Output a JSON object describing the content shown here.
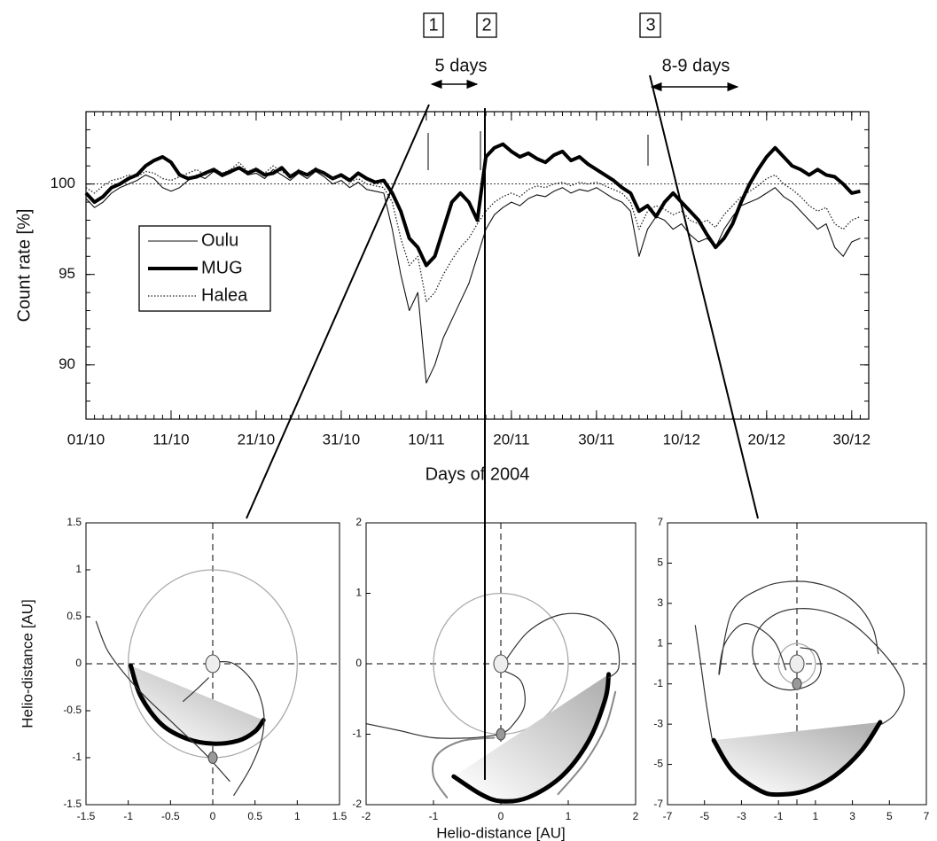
{
  "chart_data": [
    {
      "type": "line",
      "xlabel": "Days of 2004",
      "ylabel": "Count rate [%]",
      "x": [
        275,
        276,
        277,
        278,
        279,
        280,
        281,
        282,
        283,
        284,
        285,
        286,
        287,
        288,
        289,
        290,
        291,
        292,
        293,
        294,
        295,
        296,
        297,
        298,
        299,
        300,
        301,
        302,
        303,
        304,
        305,
        306,
        307,
        308,
        309,
        310,
        311,
        312,
        313,
        314,
        315,
        316,
        317,
        318,
        319,
        320,
        321,
        322,
        323,
        324,
        325,
        326,
        327,
        328,
        329,
        330,
        331,
        332,
        333,
        334,
        335,
        336,
        337,
        338,
        339,
        340,
        341,
        342,
        343,
        344,
        345,
        346,
        347,
        348,
        349,
        350,
        351,
        352,
        353,
        354,
        355,
        356,
        357,
        358,
        359,
        360,
        361,
        362,
        363,
        364,
        365,
        366
      ],
      "xlim": [
        275,
        367
      ],
      "xticks": [
        {
          "value": 275,
          "label": "01/10"
        },
        {
          "value": 285,
          "label": "11/10"
        },
        {
          "value": 295,
          "label": "21/10"
        },
        {
          "value": 305,
          "label": "31/10"
        },
        {
          "value": 315,
          "label": "10/11"
        },
        {
          "value": 325,
          "label": "20/11"
        },
        {
          "value": 335,
          "label": "30/11"
        },
        {
          "value": 345,
          "label": "10/12"
        },
        {
          "value": 355,
          "label": "20/12"
        },
        {
          "value": 365,
          "label": "30/12"
        }
      ],
      "ylim": [
        87,
        104
      ],
      "yticks": [
        90,
        95,
        100
      ],
      "reference_y": 100,
      "legend": "left",
      "series": [
        {
          "name": "Oulu",
          "color": "#111111",
          "width": 1.1,
          "dash": "solid",
          "values": [
            99.2,
            98.7,
            99.0,
            99.5,
            99.8,
            100.0,
            100.2,
            100.5,
            100.3,
            99.8,
            99.6,
            99.8,
            100.2,
            100.5,
            100.3,
            100.7,
            100.4,
            100.6,
            100.9,
            100.5,
            100.6,
            100.3,
            100.8,
            100.5,
            100.2,
            100.6,
            100.3,
            100.7,
            100.4,
            100.0,
            100.2,
            99.8,
            100.1,
            99.7,
            99.6,
            99.5,
            97.5,
            95.0,
            93.0,
            94.0,
            89.0,
            90.0,
            91.5,
            92.5,
            93.5,
            94.5,
            96.0,
            97.5,
            98.3,
            98.7,
            99.0,
            98.8,
            99.2,
            99.4,
            99.3,
            99.6,
            99.8,
            99.5,
            99.7,
            99.6,
            99.8,
            99.5,
            99.2,
            99.0,
            98.5,
            96.0,
            97.5,
            98.2,
            98.0,
            97.5,
            97.8,
            97.2,
            96.8,
            97.0,
            96.5,
            97.5,
            98.2,
            98.8,
            99.0,
            99.2,
            99.5,
            99.8,
            99.3,
            99.0,
            98.5,
            98.0,
            97.5,
            97.8,
            96.5,
            96.0,
            96.8,
            97.0
          ]
        },
        {
          "name": "MUG",
          "color": "#000000",
          "width": 4,
          "dash": "solid",
          "values": [
            99.5,
            99.0,
            99.3,
            99.8,
            100.0,
            100.3,
            100.5,
            101.0,
            101.3,
            101.5,
            101.2,
            100.5,
            100.3,
            100.4,
            100.6,
            100.8,
            100.5,
            100.7,
            100.9,
            100.6,
            100.8,
            100.5,
            100.6,
            100.9,
            100.4,
            100.7,
            100.5,
            100.8,
            100.6,
            100.3,
            100.5,
            100.2,
            100.6,
            100.3,
            100.1,
            100.2,
            99.5,
            98.5,
            97.0,
            96.5,
            95.5,
            96.0,
            97.5,
            99.0,
            99.5,
            99.0,
            98.0,
            101.5,
            102.0,
            102.2,
            101.8,
            101.5,
            101.7,
            101.4,
            101.2,
            101.6,
            101.8,
            101.3,
            101.5,
            101.1,
            100.8,
            100.5,
            100.2,
            99.8,
            99.5,
            98.5,
            98.8,
            98.2,
            99.0,
            99.5,
            99.0,
            98.5,
            98.0,
            97.2,
            96.5,
            97.0,
            97.8,
            99.0,
            100.0,
            100.8,
            101.5,
            102.0,
            101.5,
            101.0,
            100.8,
            100.5,
            100.8,
            100.5,
            100.4,
            100.0,
            99.5,
            99.6
          ]
        },
        {
          "name": "Halea",
          "color": "#222222",
          "width": 1.3,
          "dash": "dotted",
          "values": [
            99.8,
            99.5,
            99.9,
            100.2,
            100.3,
            100.5,
            100.4,
            100.7,
            100.6,
            100.3,
            100.2,
            100.4,
            100.6,
            100.8,
            100.5,
            100.9,
            100.6,
            100.8,
            101.2,
            100.7,
            100.9,
            100.6,
            101.0,
            100.7,
            100.4,
            100.8,
            100.5,
            100.9,
            100.6,
            100.3,
            100.4,
            100.1,
            100.3,
            100.0,
            99.9,
            99.8,
            99.0,
            97.0,
            95.5,
            96.0,
            93.5,
            94.0,
            95.0,
            95.8,
            96.5,
            97.0,
            97.8,
            98.5,
            99.0,
            99.3,
            99.5,
            99.3,
            99.7,
            99.9,
            99.8,
            100.0,
            100.1,
            99.9,
            100.1,
            100.0,
            100.1,
            99.9,
            99.7,
            99.5,
            99.0,
            97.5,
            98.5,
            98.8,
            98.6,
            98.3,
            98.5,
            98.0,
            97.8,
            98.0,
            97.6,
            98.3,
            98.8,
            99.3,
            99.6,
            99.9,
            100.3,
            100.5,
            100.0,
            99.7,
            99.3,
            98.8,
            98.5,
            98.7,
            97.8,
            97.5,
            98.0,
            98.2
          ]
        }
      ],
      "annotations": [
        {
          "text": "1"
        },
        {
          "text": "2"
        },
        {
          "text": "3"
        },
        {
          "text": "5 days"
        },
        {
          "text": "8-9 days"
        }
      ]
    },
    {
      "type": "orbit",
      "ylabel": "Helio-distance [AU]",
      "xlim": [
        -1.5,
        1.5
      ],
      "xticks": [
        -1.5,
        -1,
        -0.5,
        0,
        0.5,
        1,
        1.5
      ],
      "ylim": [
        -1.5,
        1.5
      ],
      "yticks": [
        -1.5,
        -1,
        -0.5,
        0,
        0.5,
        1,
        1.5
      ],
      "crosshair": true,
      "circles": [
        {
          "x": 0,
          "y": 0,
          "r": 1,
          "color": "#aaaaaa"
        }
      ],
      "bodies": [
        {
          "x": 0,
          "y": 0,
          "color": "#eeeeee"
        },
        {
          "x": 0,
          "y": -1,
          "color": "#999999"
        }
      ],
      "series": [
        {
          "color": "#000000",
          "width": 5,
          "shade": true,
          "x": [
            -0.97,
            -0.85,
            -0.6,
            -0.3,
            0,
            0.3,
            0.5,
            0.6
          ],
          "y": [
            -0.02,
            -0.35,
            -0.65,
            -0.8,
            -0.85,
            -0.82,
            -0.72,
            -0.6
          ]
        },
        {
          "color": "#333333",
          "width": 1.2,
          "x": [
            -1.38,
            -1.25,
            -1.05,
            -0.8,
            -0.45,
            -0.1,
            0.2
          ],
          "y": [
            0.45,
            0.15,
            -0.1,
            -0.35,
            -0.65,
            -0.95,
            -1.25
          ]
        },
        {
          "color": "#333333",
          "width": 1.2,
          "x": [
            0.02,
            0.25,
            0.48,
            0.6,
            0.58,
            0.45,
            0.25
          ],
          "y": [
            0.02,
            0,
            -0.2,
            -0.5,
            -0.8,
            -1.1,
            -1.4
          ]
        },
        {
          "color": "#333333",
          "width": 1.2,
          "x": [
            -0.05,
            -0.2,
            -0.35
          ],
          "y": [
            -0.15,
            -0.28,
            -0.4
          ]
        }
      ]
    },
    {
      "type": "orbit",
      "xlabel": "Helio-distance [AU]",
      "xlim": [
        -2,
        2
      ],
      "xticks": [
        -2,
        -1,
        0,
        1,
        2
      ],
      "ylim": [
        -2,
        2
      ],
      "yticks": [
        -2,
        -1,
        0,
        1,
        2
      ],
      "crosshair": true,
      "circles": [
        {
          "x": 0,
          "y": 0,
          "r": 1,
          "color": "#aaaaaa"
        }
      ],
      "bodies": [
        {
          "x": 0,
          "y": 0,
          "color": "#eeeeee"
        },
        {
          "x": 0,
          "y": -1,
          "color": "#999999"
        }
      ],
      "series": [
        {
          "color": "#000000",
          "width": 5,
          "shade": true,
          "x": [
            -0.7,
            -0.3,
            0,
            0.4,
            0.9,
            1.3,
            1.55,
            1.6
          ],
          "y": [
            -1.6,
            -1.85,
            -1.95,
            -1.9,
            -1.6,
            -1.1,
            -0.5,
            -0.15
          ]
        },
        {
          "color": "#333333",
          "width": 1.2,
          "x": [
            0,
            0.4,
            0.9,
            1.4,
            1.7,
            1.75,
            1.6
          ],
          "y": [
            -0.05,
            0.45,
            0.7,
            0.65,
            0.35,
            -0.05,
            -0.2
          ]
        },
        {
          "color": "#333333",
          "width": 1.2,
          "x": [
            0.05,
            0.3,
            0.35,
            0.15,
            0
          ],
          "y": [
            -0.1,
            -0.25,
            -0.6,
            -0.9,
            -1
          ]
        },
        {
          "color": "#333333",
          "width": 1.2,
          "x": [
            -2,
            -1.5,
            -1,
            -0.4,
            0
          ],
          "y": [
            -0.85,
            -0.95,
            -1.05,
            -1.05,
            -1
          ]
        },
        {
          "color": "#888888",
          "width": 2,
          "x": [
            -0.8,
            -1.0,
            -0.95,
            -0.6,
            -0.1
          ],
          "y": [
            -1.9,
            -1.6,
            -1.3,
            -1.1,
            -1.05
          ]
        },
        {
          "color": "#888888",
          "width": 2,
          "x": [
            0.85,
            1.25,
            1.55,
            1.7
          ],
          "y": [
            -1.85,
            -1.4,
            -0.9,
            -0.4
          ]
        }
      ]
    },
    {
      "type": "orbit",
      "xlim": [
        -7,
        7
      ],
      "xticks": [
        -7,
        -5,
        -3,
        -1,
        1,
        3,
        5,
        7
      ],
      "ylim": [
        -7,
        7
      ],
      "yticks": [
        -7,
        -5,
        -3,
        -1,
        1,
        3,
        5,
        7
      ],
      "crosshair": true,
      "circles": [
        {
          "x": 0,
          "y": 0,
          "r": 1,
          "color": "#aaaaaa"
        }
      ],
      "bodies": [
        {
          "x": 0,
          "y": 0,
          "color": "#eeeeee"
        },
        {
          "x": 0,
          "y": -1,
          "color": "#999999"
        }
      ],
      "series": [
        {
          "color": "#000000",
          "width": 5,
          "shade": true,
          "x": [
            -4.5,
            -3.5,
            -2,
            -1,
            0.5,
            2,
            3.5,
            4.5
          ],
          "y": [
            -3.8,
            -5.3,
            -6.3,
            -6.5,
            -6.3,
            -5.6,
            -4.3,
            -2.9
          ]
        },
        {
          "color": "#333333",
          "width": 1.2,
          "x": [
            0.2,
            1.0,
            1.3,
            0.8,
            -0.5,
            -1.8,
            -2.4,
            -2.0,
            -0.8,
            1.0,
            2.8,
            4.3,
            5.5,
            5.8,
            5.3,
            4.6
          ],
          "y": [
            0.8,
            0.6,
            -0.3,
            -1.0,
            -1.3,
            -0.8,
            0.5,
            1.8,
            2.6,
            2.7,
            2.1,
            0.9,
            -0.5,
            -1.5,
            -2.5,
            -3.0
          ]
        },
        {
          "color": "#333333",
          "width": 1.2,
          "x": [
            -0.6,
            -1.3,
            -2.8,
            -3.9,
            -4.2,
            -3.5,
            -1.8,
            0,
            1.8,
            3.2,
            4.1,
            4.4
          ],
          "y": [
            -0.3,
            1.2,
            2.0,
            1.0,
            -0.5,
            2.6,
            3.8,
            4.1,
            3.8,
            3.0,
            1.8,
            0.5
          ]
        },
        {
          "color": "#333333",
          "width": 1.2,
          "x": [
            -5.5,
            -5.2,
            -4.9,
            -4.6
          ],
          "y": [
            1.9,
            0,
            -2,
            -3.7
          ]
        }
      ]
    }
  ]
}
